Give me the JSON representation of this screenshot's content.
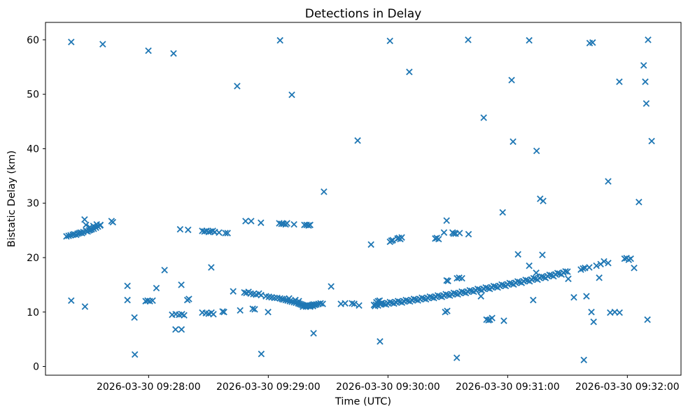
{
  "chart_data": {
    "type": "scatter",
    "title": "Detections in Delay",
    "xlabel": "Time (UTC)",
    "ylabel": "Bistatic Delay (km)",
    "marker": "x",
    "marker_color": "#1f77b4",
    "axis_color": "#000000",
    "background_color": "#ffffff",
    "x_unit": "seconds after 2026-03-30 09:28:00 UTC",
    "xlim": [
      -51.7,
      266.9
    ],
    "ylim": [
      -1.6,
      63.2
    ],
    "grid": false,
    "legend": null,
    "yticks": [
      0,
      10,
      20,
      30,
      40,
      50,
      60
    ],
    "xticks": [
      {
        "t": 0,
        "label": "2026-03-30 09:28:00"
      },
      {
        "t": 60,
        "label": "2026-03-30 09:29:00"
      },
      {
        "t": 120,
        "label": "2026-03-30 09:30:00"
      },
      {
        "t": 180,
        "label": "2026-03-30 09:31:00"
      },
      {
        "t": 240,
        "label": "2026-03-30 09:32:00"
      }
    ],
    "points": [
      [
        -38.8,
        59.6
      ],
      [
        -23.0,
        59.2
      ],
      [
        -0.1,
        58.0
      ],
      [
        12.5,
        57.5
      ],
      [
        44.4,
        51.5
      ],
      [
        65.9,
        59.9
      ],
      [
        71.8,
        49.9
      ],
      [
        87.9,
        32.1
      ],
      [
        104.8,
        41.5
      ],
      [
        121.0,
        59.8
      ],
      [
        130.7,
        54.1
      ],
      [
        160.2,
        60.0
      ],
      [
        168.0,
        45.7
      ],
      [
        177.5,
        28.3
      ],
      [
        182.0,
        52.6
      ],
      [
        182.7,
        41.3
      ],
      [
        190.8,
        59.9
      ],
      [
        194.5,
        39.6
      ],
      [
        196.3,
        30.8
      ],
      [
        197.8,
        30.4
      ],
      [
        221.1,
        59.4
      ],
      [
        222.6,
        59.5
      ],
      [
        230.4,
        34.0
      ],
      [
        236.0,
        52.3
      ],
      [
        245.8,
        30.2
      ],
      [
        248.2,
        55.3
      ],
      [
        249.0,
        52.3
      ],
      [
        249.5,
        48.3
      ],
      [
        250.4,
        60.0
      ],
      [
        252.2,
        41.4
      ],
      [
        -41.2,
        23.9
      ],
      [
        -40.1,
        24.0
      ],
      [
        -39.1,
        24.1
      ],
      [
        -38.0,
        24.2
      ],
      [
        -37.3,
        24.3
      ],
      [
        -36.3,
        24.2
      ],
      [
        -35.6,
        24.4
      ],
      [
        -34.8,
        24.5
      ],
      [
        -34.1,
        24.6
      ],
      [
        -33.4,
        24.5
      ],
      [
        -32.7,
        24.7
      ],
      [
        -31.3,
        24.9
      ],
      [
        -30.6,
        24.8
      ],
      [
        -29.9,
        25.0
      ],
      [
        -29.2,
        25.1
      ],
      [
        -28.5,
        25.2
      ],
      [
        -27.5,
        25.3
      ],
      [
        -26.4,
        25.5
      ],
      [
        -25.4,
        25.7
      ],
      [
        -24.3,
        25.9
      ],
      [
        -32.1,
        27.0
      ],
      [
        -31.4,
        26.0
      ],
      [
        -29.5,
        25.6
      ],
      [
        -27.7,
        25.8
      ],
      [
        -26.0,
        26.1
      ],
      [
        -24.2,
        26.0
      ],
      [
        -18.6,
        26.7
      ],
      [
        -17.9,
        26.5
      ],
      [
        -38.8,
        12.1
      ],
      [
        -31.9,
        11.0
      ],
      [
        -10.6,
        14.8
      ],
      [
        -10.6,
        12.2
      ],
      [
        -7.1,
        9.0
      ],
      [
        -6.9,
        2.2
      ],
      [
        -1.5,
        12.0
      ],
      [
        -0.5,
        12.1
      ],
      [
        0.6,
        12.0
      ],
      [
        2.0,
        12.1
      ],
      [
        3.9,
        14.4
      ],
      [
        8.0,
        17.7
      ],
      [
        11.8,
        9.5
      ],
      [
        13.6,
        9.6
      ],
      [
        15.3,
        9.5
      ],
      [
        16.7,
        9.6
      ],
      [
        17.8,
        9.4
      ],
      [
        13.5,
        6.8
      ],
      [
        16.5,
        6.8
      ],
      [
        16.4,
        15.0
      ],
      [
        19.4,
        12.2
      ],
      [
        20.2,
        12.4
      ],
      [
        26.9,
        9.9
      ],
      [
        28.7,
        9.8
      ],
      [
        30.1,
        9.7
      ],
      [
        31.4,
        18.2
      ],
      [
        31.5,
        9.9
      ],
      [
        32.5,
        9.6
      ],
      [
        37.1,
        10.1
      ],
      [
        37.8,
        10.0
      ],
      [
        45.9,
        10.3
      ],
      [
        52.2,
        10.6
      ],
      [
        53.2,
        10.5
      ],
      [
        59.9,
        10.0
      ],
      [
        56.5,
        2.3
      ],
      [
        82.7,
        6.1
      ],
      [
        116.0,
        4.6
      ],
      [
        154.5,
        1.6
      ],
      [
        218.2,
        1.2
      ],
      [
        15.8,
        25.2
      ],
      [
        19.8,
        25.1
      ],
      [
        26.9,
        24.9
      ],
      [
        28.0,
        24.8
      ],
      [
        29.0,
        24.9
      ],
      [
        30.1,
        24.7
      ],
      [
        31.1,
        24.8
      ],
      [
        32.2,
        24.9
      ],
      [
        33.2,
        24.7
      ],
      [
        35.3,
        24.6
      ],
      [
        38.5,
        24.5
      ],
      [
        39.6,
        24.5
      ],
      [
        48.6,
        26.7
      ],
      [
        51.4,
        26.7
      ],
      [
        56.3,
        26.4
      ],
      [
        65.5,
        26.3
      ],
      [
        66.6,
        26.2
      ],
      [
        67.6,
        26.2
      ],
      [
        68.7,
        26.1
      ],
      [
        69.4,
        26.3
      ],
      [
        72.9,
        26.1
      ],
      [
        78.1,
        26.0
      ],
      [
        79.2,
        26.0
      ],
      [
        80.2,
        25.9
      ],
      [
        81.0,
        26.0
      ],
      [
        42.4,
        13.8
      ],
      [
        48.0,
        13.6
      ],
      [
        49.0,
        13.5
      ],
      [
        50.1,
        13.7
      ],
      [
        51.1,
        13.4
      ],
      [
        52.5,
        13.3
      ],
      [
        53.9,
        13.2
      ],
      [
        55.3,
        13.4
      ],
      [
        56.4,
        13.1
      ],
      [
        58.8,
        12.9
      ],
      [
        60.3,
        12.8
      ],
      [
        61.7,
        12.7
      ],
      [
        63.1,
        12.6
      ],
      [
        64.5,
        12.6
      ],
      [
        65.9,
        12.5
      ],
      [
        66.9,
        12.4
      ],
      [
        67.6,
        12.3
      ],
      [
        68.7,
        12.2
      ],
      [
        69.7,
        12.1
      ],
      [
        70.8,
        12.0
      ],
      [
        71.8,
        11.9
      ],
      [
        72.9,
        11.8
      ],
      [
        73.9,
        11.7
      ],
      [
        75.0,
        11.6
      ],
      [
        75.7,
        11.5
      ],
      [
        76.4,
        11.4
      ],
      [
        77.1,
        11.3
      ],
      [
        77.8,
        11.2
      ],
      [
        78.5,
        11.2
      ],
      [
        79.2,
        11.1
      ],
      [
        79.9,
        11.2
      ],
      [
        80.6,
        11.1
      ],
      [
        81.3,
        11.2
      ],
      [
        82.0,
        11.3
      ],
      [
        82.7,
        11.4
      ],
      [
        83.4,
        11.3
      ],
      [
        84.1,
        11.4
      ],
      [
        85.2,
        11.5
      ],
      [
        86.2,
        11.6
      ],
      [
        87.3,
        11.5
      ],
      [
        77.4,
        11.0
      ],
      [
        78.9,
        11.0
      ],
      [
        81.0,
        11.0
      ],
      [
        82.4,
        11.1
      ],
      [
        70.4,
        12.5
      ],
      [
        73.6,
        12.2
      ],
      [
        75.3,
        12.0
      ],
      [
        91.5,
        14.7
      ],
      [
        96.4,
        11.5
      ],
      [
        98.5,
        11.6
      ],
      [
        102.0,
        11.6
      ],
      [
        103.1,
        11.5
      ],
      [
        105.5,
        11.2
      ],
      [
        111.5,
        22.4
      ],
      [
        121.0,
        22.9
      ],
      [
        121.7,
        23.1
      ],
      [
        122.4,
        23.2
      ],
      [
        124.8,
        23.5
      ],
      [
        125.5,
        23.6
      ],
      [
        126.2,
        23.4
      ],
      [
        126.9,
        23.7
      ],
      [
        143.7,
        23.5
      ],
      [
        144.5,
        23.6
      ],
      [
        145.4,
        23.4
      ],
      [
        148.1,
        24.6
      ],
      [
        149.4,
        26.8
      ],
      [
        152.4,
        24.6
      ],
      [
        152.9,
        24.4
      ],
      [
        153.9,
        24.4
      ],
      [
        155.9,
        24.5
      ],
      [
        160.4,
        24.3
      ],
      [
        113.0,
        11.3
      ],
      [
        113.5,
        11.1
      ],
      [
        114.2,
        11.8
      ],
      [
        115.0,
        12.0
      ],
      [
        115.8,
        12.1
      ],
      [
        116.5,
        11.6
      ],
      [
        114,
        11.35
      ],
      [
        116,
        11.43
      ],
      [
        118,
        11.52
      ],
      [
        120,
        11.61
      ],
      [
        122,
        11.7
      ],
      [
        124,
        11.79
      ],
      [
        126,
        11.88
      ],
      [
        128,
        11.98
      ],
      [
        130,
        12.08
      ],
      [
        132,
        12.18
      ],
      [
        134,
        12.28
      ],
      [
        136,
        12.38
      ],
      [
        138,
        12.48
      ],
      [
        140,
        12.59
      ],
      [
        142,
        12.7
      ],
      [
        144,
        12.81
      ],
      [
        146,
        12.92
      ],
      [
        148,
        13.03
      ],
      [
        150,
        13.15
      ],
      [
        152,
        13.27
      ],
      [
        154,
        13.38
      ],
      [
        156,
        13.5
      ],
      [
        158,
        13.63
      ],
      [
        160,
        13.75
      ],
      [
        162,
        13.88
      ],
      [
        164,
        14.0
      ],
      [
        166,
        14.13
      ],
      [
        168,
        14.26
      ],
      [
        170,
        14.39
      ],
      [
        172,
        14.53
      ],
      [
        174,
        14.66
      ],
      [
        176,
        14.8
      ],
      [
        178,
        14.94
      ],
      [
        180,
        15.08
      ],
      [
        182,
        15.22
      ],
      [
        184,
        15.37
      ],
      [
        186,
        15.51
      ],
      [
        188,
        15.66
      ],
      [
        190,
        15.81
      ],
      [
        192,
        15.96
      ],
      [
        194,
        16.12
      ],
      [
        196,
        16.27
      ],
      [
        198,
        16.43
      ],
      [
        200,
        16.59
      ],
      [
        202,
        16.75
      ],
      [
        204,
        16.91
      ],
      [
        206,
        17.07
      ],
      [
        208,
        17.24
      ],
      [
        210,
        17.41
      ],
      [
        115,
        11.2
      ],
      [
        117,
        11.66
      ],
      [
        119,
        11.38
      ],
      [
        121,
        11.84
      ],
      [
        123,
        11.56
      ],
      [
        125,
        12.02
      ],
      [
        127,
        11.74
      ],
      [
        129,
        12.21
      ],
      [
        131,
        11.94
      ],
      [
        133,
        12.41
      ],
      [
        135,
        12.14
      ],
      [
        137,
        12.62
      ],
      [
        139,
        12.35
      ],
      [
        141,
        12.83
      ],
      [
        143,
        12.57
      ],
      [
        145,
        13.05
      ],
      [
        147,
        12.79
      ],
      [
        149,
        13.28
      ],
      [
        151,
        13.02
      ],
      [
        153,
        13.51
      ],
      [
        155,
        13.25
      ],
      [
        157,
        13.75
      ],
      [
        159,
        13.49
      ],
      [
        161,
        13.99
      ],
      [
        163,
        13.74
      ],
      [
        165,
        14.25
      ],
      [
        167,
        13.99
      ],
      [
        169,
        14.51
      ],
      [
        171,
        14.25
      ],
      [
        173,
        14.77
      ],
      [
        175,
        14.52
      ],
      [
        177,
        15.05
      ],
      [
        179,
        14.79
      ],
      [
        181,
        15.33
      ],
      [
        183,
        15.07
      ],
      [
        185,
        15.62
      ],
      [
        187,
        15.36
      ],
      [
        189,
        15.91
      ],
      [
        191,
        15.65
      ],
      [
        193,
        16.21
      ],
      [
        195,
        15.95
      ],
      [
        197,
        16.52
      ],
      [
        199,
        16.26
      ],
      [
        201,
        16.83
      ],
      [
        203,
        16.57
      ],
      [
        205,
        17.15
      ],
      [
        207,
        16.89
      ],
      [
        209,
        17.47
      ],
      [
        216.7,
        17.8
      ],
      [
        217.8,
        18.0
      ],
      [
        218.8,
        18.1
      ],
      [
        220.9,
        18.2
      ],
      [
        224.5,
        18.5
      ],
      [
        226.6,
        18.8
      ],
      [
        228.3,
        19.3
      ],
      [
        230.4,
        19.0
      ],
      [
        238.6,
        19.8
      ],
      [
        239.6,
        19.9
      ],
      [
        240.7,
        19.6
      ],
      [
        241.7,
        19.8
      ],
      [
        243.4,
        18.1
      ],
      [
        148.7,
        10.0
      ],
      [
        149.7,
        10.2
      ],
      [
        149.4,
        15.8
      ],
      [
        150.1,
        15.7
      ],
      [
        154.6,
        16.2
      ],
      [
        155.7,
        16.3
      ],
      [
        157.1,
        16.2
      ],
      [
        166.6,
        12.9
      ],
      [
        169.4,
        8.6
      ],
      [
        170.4,
        8.5
      ],
      [
        171.1,
        8.6
      ],
      [
        172.2,
        8.9
      ],
      [
        178.1,
        8.4
      ],
      [
        185.2,
        20.6
      ],
      [
        190.8,
        18.5
      ],
      [
        192.8,
        12.2
      ],
      [
        194.3,
        17.2
      ],
      [
        197.4,
        20.5
      ],
      [
        210.4,
        16.1
      ],
      [
        213.2,
        12.7
      ],
      [
        219.5,
        12.9
      ],
      [
        222.0,
        10.0
      ],
      [
        223.1,
        8.2
      ],
      [
        225.9,
        16.3
      ],
      [
        231.4,
        9.9
      ],
      [
        233.7,
        10.0
      ],
      [
        236.1,
        9.9
      ],
      [
        250.1,
        8.6
      ]
    ]
  }
}
